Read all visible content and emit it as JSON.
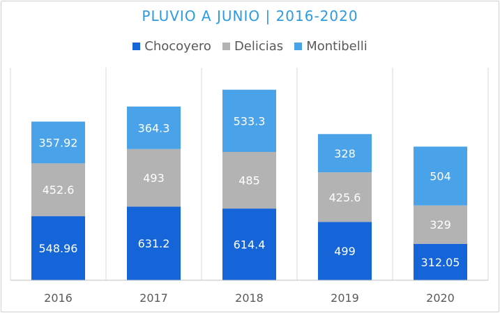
{
  "chart_data": {
    "type": "bar",
    "stacked": true,
    "title": "PLUVIO A JUNIO | 2016-2020",
    "categories": [
      "2016",
      "2017",
      "2018",
      "2019",
      "2020"
    ],
    "series": [
      {
        "name": "Chocoyero",
        "color": "#1565d8",
        "values": [
          548.96,
          631.2,
          614.4,
          499,
          312.05
        ],
        "labels": [
          "548.96",
          "631.2",
          "614.4",
          "499",
          "312.05"
        ]
      },
      {
        "name": "Delicias",
        "color": "#b3b3b3",
        "values": [
          452.6,
          493,
          485,
          425.6,
          329
        ],
        "labels": [
          "452.6",
          "493",
          "485",
          "425.6",
          "329"
        ]
      },
      {
        "name": "Montibelli",
        "color": "#4aa3e8",
        "values": [
          357.92,
          364.3,
          533.3,
          328,
          504
        ],
        "labels": [
          "357.92",
          "364.3",
          "533.3",
          "328",
          "504"
        ]
      }
    ],
    "legend_position": "top",
    "grid": false
  }
}
